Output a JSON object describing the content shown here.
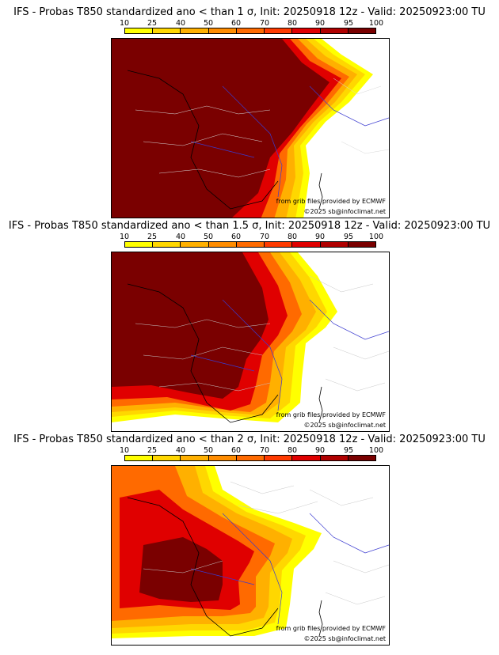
{
  "legend": {
    "ticks": [
      "10",
      "25",
      "40",
      "50",
      "60",
      "70",
      "80",
      "90",
      "95",
      "100"
    ],
    "colors": [
      "#ffff00",
      "#ffd700",
      "#ffb000",
      "#ff8c00",
      "#ff6a00",
      "#ff3a00",
      "#e00000",
      "#b00000",
      "#7a0000"
    ]
  },
  "panels": [
    {
      "title": "IFS - Probas T850  standardized ano < than 1 σ, Init: 20250918 12z - Valid: 20250923:00 TU",
      "credit": "from grib files provided by ECMWF",
      "copyright": "©2025 sb@infoclimat.net"
    },
    {
      "title": "IFS - Probas T850  standardized ano < than 1.5 σ, Init: 20250918 12z - Valid: 20250923:00 TU",
      "credit": "from grib files provided by ECMWF",
      "copyright": "©2025 sb@infoclimat.net"
    },
    {
      "title": "IFS - Probas T850  standardized ano < than 2 σ, Init: 20250918 12z - Valid: 20250923:00 TU",
      "credit": "from grib files provided by ECMWF",
      "copyright": "©2025 sb@infoclimat.net"
    }
  ]
}
